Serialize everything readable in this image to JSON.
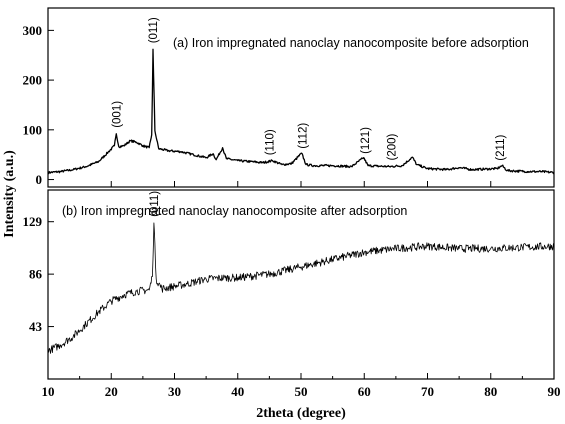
{
  "chart_data": {
    "type": "line",
    "xlabel": "2theta (degree)",
    "ylabel": "Intensity (a.u.)",
    "xlim": [
      10,
      90
    ],
    "x_ticks": [
      "10",
      "20",
      "30",
      "40",
      "50",
      "60",
      "70",
      "80",
      "90"
    ],
    "grid": false,
    "panels": [
      {
        "title": "(a) Iron impregnated nanoclay nanocomposite before adsorption",
        "ylim": [
          -15,
          345
        ],
        "y_ticks": [
          "0",
          "100",
          "200",
          "300"
        ],
        "series_points": [
          [
            10,
            14
          ],
          [
            12,
            16
          ],
          [
            14,
            20
          ],
          [
            16,
            26
          ],
          [
            18,
            36
          ],
          [
            19.5,
            55
          ],
          [
            20.5,
            68
          ],
          [
            20.8,
            92
          ],
          [
            21.2,
            66
          ],
          [
            22,
            68
          ],
          [
            23,
            78
          ],
          [
            24,
            75
          ],
          [
            25,
            68
          ],
          [
            26,
            64
          ],
          [
            26.4,
            90
          ],
          [
            26.6,
            262
          ],
          [
            26.9,
            98
          ],
          [
            27.5,
            62
          ],
          [
            29,
            58
          ],
          [
            31,
            56
          ],
          [
            33,
            50
          ],
          [
            35,
            44
          ],
          [
            36.1,
            52
          ],
          [
            36.6,
            40
          ],
          [
            37.6,
            64
          ],
          [
            38.2,
            42
          ],
          [
            40,
            38
          ],
          [
            42,
            36
          ],
          [
            44,
            34
          ],
          [
            45.5,
            38
          ],
          [
            47,
            30
          ],
          [
            48.5,
            32
          ],
          [
            50.1,
            53
          ],
          [
            50.8,
            30
          ],
          [
            52,
            28
          ],
          [
            55,
            28
          ],
          [
            58,
            26
          ],
          [
            59.9,
            44
          ],
          [
            60.6,
            28
          ],
          [
            62,
            27
          ],
          [
            64,
            26
          ],
          [
            66,
            28
          ],
          [
            67.6,
            45
          ],
          [
            68.3,
            30
          ],
          [
            70,
            22
          ],
          [
            73,
            20
          ],
          [
            75,
            24
          ],
          [
            77,
            20
          ],
          [
            81,
            22
          ],
          [
            81.8,
            28
          ],
          [
            82.6,
            18
          ],
          [
            86,
            16
          ],
          [
            88,
            16
          ],
          [
            90,
            14
          ]
        ],
        "peaks": [
          {
            "label": "(001)",
            "x": 20.8
          },
          {
            "label": "(011)",
            "x": 26.6
          },
          {
            "label": "(110)",
            "x": 45
          },
          {
            "label": "(112)",
            "x": 50.2
          },
          {
            "label": "(121)",
            "x": 60.1
          },
          {
            "label": "(200)",
            "x": 64.3
          },
          {
            "label": "(211)",
            "x": 81.5
          }
        ]
      },
      {
        "title": "(b) Iron impregnated nanoclay nanocomposite after adsorption",
        "ylim": [
          0,
          155
        ],
        "y_ticks": [
          "43",
          "86",
          "129"
        ],
        "series_points": [
          [
            10,
            23
          ],
          [
            12,
            28
          ],
          [
            14,
            35
          ],
          [
            16,
            45
          ],
          [
            18,
            55
          ],
          [
            20,
            64
          ],
          [
            22,
            69
          ],
          [
            24,
            72
          ],
          [
            26,
            73
          ],
          [
            26.5,
            84
          ],
          [
            26.75,
            128
          ],
          [
            27.1,
            82
          ],
          [
            28,
            74
          ],
          [
            30,
            76
          ],
          [
            32,
            78
          ],
          [
            35,
            82
          ],
          [
            38,
            83
          ],
          [
            40,
            83
          ],
          [
            45,
            86
          ],
          [
            50,
            92
          ],
          [
            55,
            98
          ],
          [
            60,
            104
          ],
          [
            65,
            107
          ],
          [
            70,
            109
          ],
          [
            75,
            107
          ],
          [
            80,
            107
          ],
          [
            85,
            108
          ],
          [
            90,
            109
          ]
        ],
        "peaks": [
          {
            "label": "(011)",
            "x": 26.75
          }
        ]
      }
    ]
  }
}
